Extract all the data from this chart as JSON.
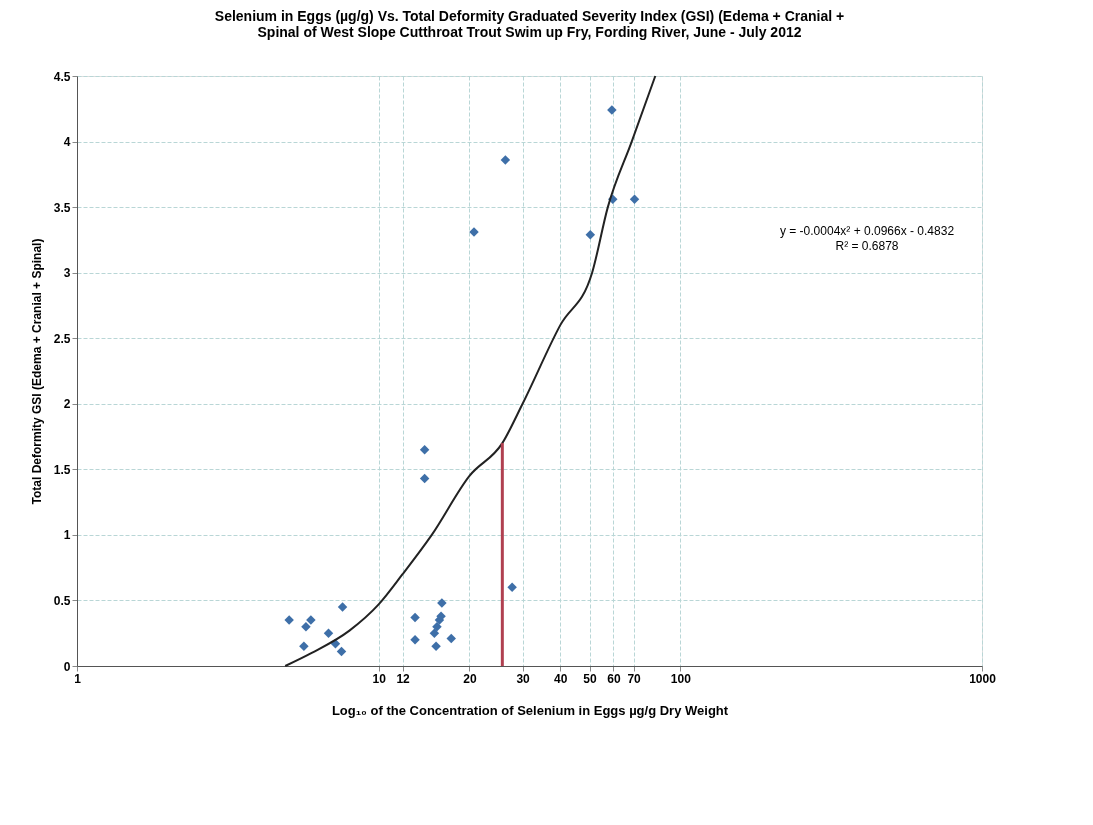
{
  "chart_data": {
    "type": "scatter",
    "title": "Selenium in Eggs (µg/g) Vs. Total Deformity Graduated Severity Index (GSI) (Edema + Cranial +\nSpinal of West Slope Cutthroat Trout Swim up Fry, Fording River, June - July 2012",
    "xlabel": "Log₁₀ of the Concentration of Selenium in Eggs µg/g Dry Weight",
    "ylabel": "Total Deformity GSI (Edema + Cranial + Spinal)",
    "log": "x",
    "grid": true,
    "xlim": [
      1,
      1000
    ],
    "xticks": [
      1,
      10,
      12,
      20,
      30,
      40,
      50,
      60,
      70,
      100,
      1000
    ],
    "ylim": [
      0,
      4.5
    ],
    "yticks": [
      0,
      0.5,
      1,
      1.5,
      2,
      2.5,
      3,
      3.5,
      4,
      4.5
    ],
    "series": [
      {
        "marker": "diamond",
        "color": "#3e6fa8",
        "x": [
          5.05,
          5.65,
          5.74,
          5.96,
          6.82,
          7.19,
          7.53,
          7.59,
          13.2,
          13.2,
          15.5,
          15.3,
          15.6,
          15.9,
          16.1,
          16.2,
          17.4,
          14.2,
          14.2,
          27.7,
          20.7,
          26.3,
          59.3,
          50.3,
          59.7,
          70.5
        ],
        "values": [
          0.35,
          0.15,
          0.3,
          0.35,
          0.25,
          0.17,
          0.11,
          0.45,
          0.37,
          0.2,
          0.15,
          0.25,
          0.3,
          0.35,
          0.38,
          0.48,
          0.21,
          1.65,
          1.43,
          0.6,
          3.31,
          3.86,
          4.24,
          3.29,
          3.56,
          3.56
        ]
      },
      {
        "type": "line",
        "marker": "none",
        "color": "#222222",
        "x": [
          4.9,
          6,
          8,
          10,
          12,
          15,
          20,
          25.7,
          30,
          40,
          51,
          57.5,
          69,
          82.6
        ],
        "values": [
          0,
          0.1,
          0.27,
          0.47,
          0.7,
          1.0,
          1.45,
          1.7,
          2.0,
          2.6,
          3.0,
          3.5,
          4.0,
          4.5
        ]
      },
      {
        "type": "line",
        "marker": "none",
        "color": "#b04050",
        "x": [
          25.7,
          25.7
        ],
        "values": [
          1.7,
          0
        ]
      }
    ],
    "annotations": [
      "y = -0.0004x² + 0.0966x - 0.4832",
      "R² = 0.6878"
    ]
  }
}
